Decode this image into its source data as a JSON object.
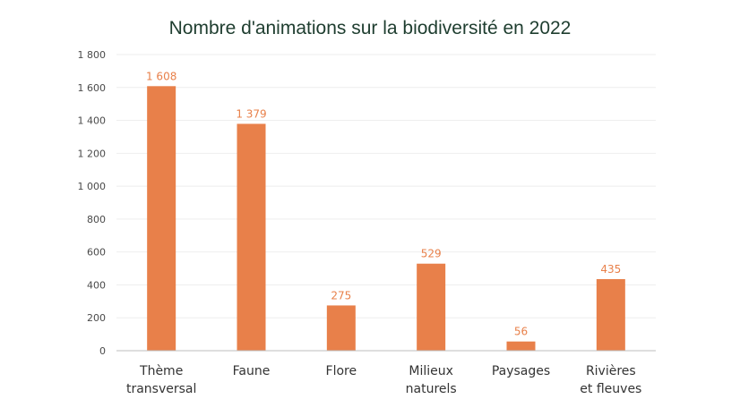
{
  "chart_data": {
    "type": "bar",
    "title": "Nombre d'animations sur la biodiversité en 2022",
    "xlabel": "",
    "ylabel": "",
    "categories": [
      [
        "Thème",
        "transversal"
      ],
      [
        "Faune"
      ],
      [
        "Flore"
      ],
      [
        "Milieux",
        "naturels"
      ],
      [
        "Paysages"
      ],
      [
        "Rivières",
        "et fleuves"
      ]
    ],
    "values": [
      1608,
      1379,
      275,
      529,
      56,
      435
    ],
    "data_labels": [
      "1 608",
      "1 379",
      "275",
      "529",
      "56",
      "435"
    ],
    "ylim": [
      0,
      1800
    ],
    "yticks": [
      0,
      200,
      400,
      600,
      800,
      1000,
      1200,
      1400,
      1600,
      1800
    ],
    "ytick_labels": [
      "0",
      "200",
      "400",
      "600",
      "800",
      "1 000",
      "1 200",
      "1 400",
      "1 600",
      "1 800"
    ],
    "grid": true,
    "legend": "none",
    "colors": {
      "bar": "#e8804a",
      "data_label": "#e8804a",
      "title": "#1e3d2f",
      "grid": "#eeeeee",
      "axis": "#bdbdbd"
    }
  }
}
